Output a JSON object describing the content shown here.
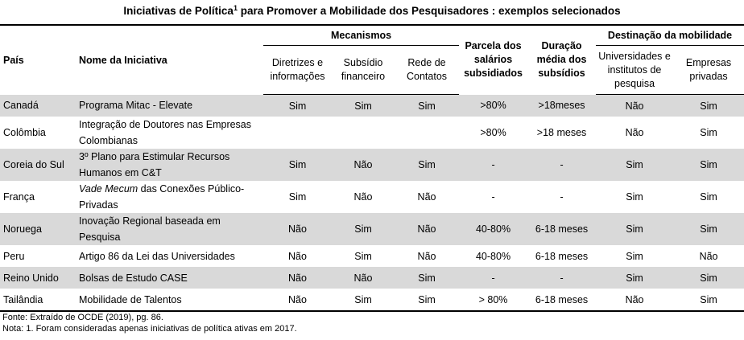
{
  "title": {
    "text": "Iniciativas de Política",
    "sup": "1",
    "rest": " para Promover a Mobilidade dos Pesquisadores : exemplos selecionados"
  },
  "headers": {
    "country": "País",
    "initiative": "Nome da Iniciativa",
    "mechanisms": "Mecanismos",
    "guidelines": "Diretrizes e informações",
    "subsidy": "Subsídio financeiro",
    "network": "Rede de Contatos",
    "salary_share": "Parcela dos salários subsidiados",
    "duration": "Duração média dos subsídios",
    "destination": "Destinação da mobilidade",
    "universities": "Universidades e institutos de pesquisa",
    "companies": "Empresas privadas"
  },
  "rows": [
    {
      "country": "Canadá",
      "initiative_italic": "",
      "initiative": "Programa Mitac - Elevate",
      "guidelines": "Sim",
      "subsidy": "Sim",
      "network": "Sim",
      "salary_share": ">80%",
      "duration": ">18meses",
      "universities": "Não",
      "companies": "Sim"
    },
    {
      "country": "Colômbia",
      "initiative_italic": "",
      "initiative": "Integração de Doutores nas Empresas Colombianas",
      "guidelines": "",
      "subsidy": "",
      "network": "",
      "salary_share": ">80%",
      "duration": ">18 meses",
      "universities": "Não",
      "companies": "Sim"
    },
    {
      "country": "Coreia do Sul",
      "initiative_italic": "",
      "initiative": "3º Plano para Estimular Recursos Humanos em C&T",
      "guidelines": "Sim",
      "subsidy": "Não",
      "network": "Sim",
      "salary_share": "-",
      "duration": "-",
      "universities": "Sim",
      "companies": "Sim"
    },
    {
      "country": "França",
      "initiative_italic": "Vade Mecum",
      "initiative": " das Conexões Público-Privadas",
      "guidelines": "Sim",
      "subsidy": "Não",
      "network": "Não",
      "salary_share": "-",
      "duration": "-",
      "universities": "Sim",
      "companies": "Sim"
    },
    {
      "country": "Noruega",
      "initiative_italic": "",
      "initiative": "Inovação Regional baseada em Pesquisa",
      "guidelines": "Não",
      "subsidy": "Sim",
      "network": "Não",
      "salary_share": "40-80%",
      "duration": "6-18 meses",
      "universities": "Sim",
      "companies": "Sim"
    },
    {
      "country": "Peru",
      "initiative_italic": "",
      "initiative": "Artigo 86 da Lei das Universidades",
      "guidelines": "Não",
      "subsidy": "Sim",
      "network": "Não",
      "salary_share": "40-80%",
      "duration": "6-18 meses",
      "universities": "Sim",
      "companies": "Não"
    },
    {
      "country": "Reino Unido",
      "initiative_italic": "",
      "initiative": "Bolsas de Estudo CASE",
      "guidelines": "Não",
      "subsidy": "Não",
      "network": "Sim",
      "salary_share": "-",
      "duration": "-",
      "universities": "Sim",
      "companies": "Sim"
    },
    {
      "country": "Tailândia",
      "initiative_italic": "",
      "initiative": "Mobilidade de Talentos",
      "guidelines": "Não",
      "subsidy": "Sim",
      "network": "Sim",
      "salary_share": "> 80%",
      "duration": "6-18 meses",
      "universities": "Não",
      "companies": "Sim"
    }
  ],
  "footer": {
    "source": "Fonte: Extraído de OCDE (2019), pg. 86.",
    "note": "Nota: 1. Foram consideradas apenas iniciativas de política ativas em 2017."
  },
  "colors": {
    "shade": "#d9d9d9",
    "border": "#000000"
  }
}
